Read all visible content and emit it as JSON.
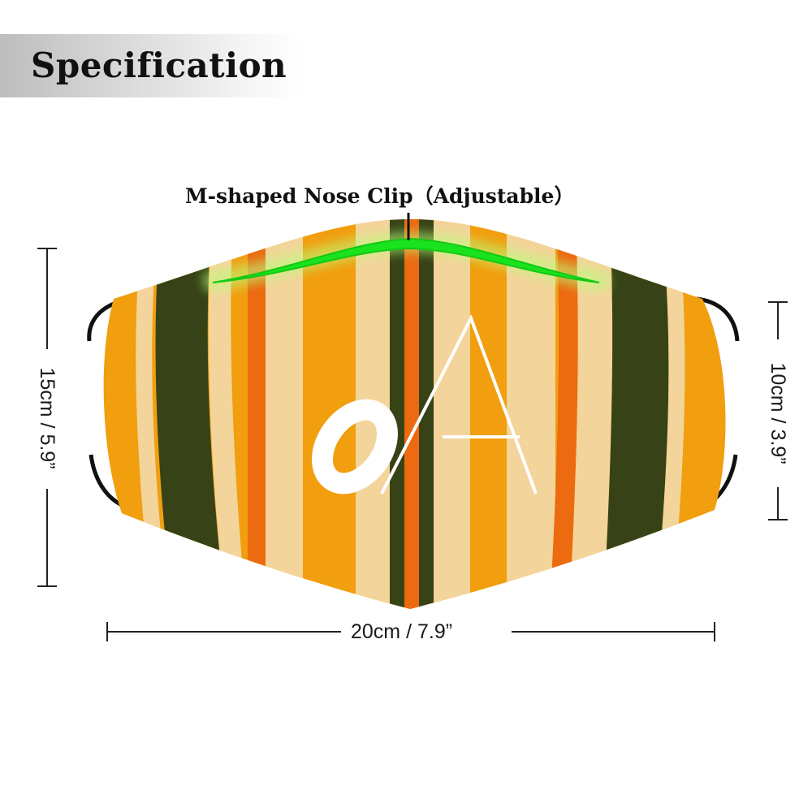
{
  "header": {
    "title": "Specification"
  },
  "nose_clip": {
    "label": "M-shaped Nose Clip（Adjustable）",
    "color": "#19e31c"
  },
  "dimensions": {
    "height_label": "15cm / 5.9”",
    "depth_label": "10cm / 3.9”",
    "width_label": "20cm / 7.9”"
  },
  "mask": {
    "print_text": "OA",
    "stripe_colors": {
      "orange": "#f19e0f",
      "cream": "#f3d49a",
      "dark_olive": "#374316",
      "burnt_orange": "#ec6a10"
    },
    "ear_loop_color": "#111111"
  }
}
